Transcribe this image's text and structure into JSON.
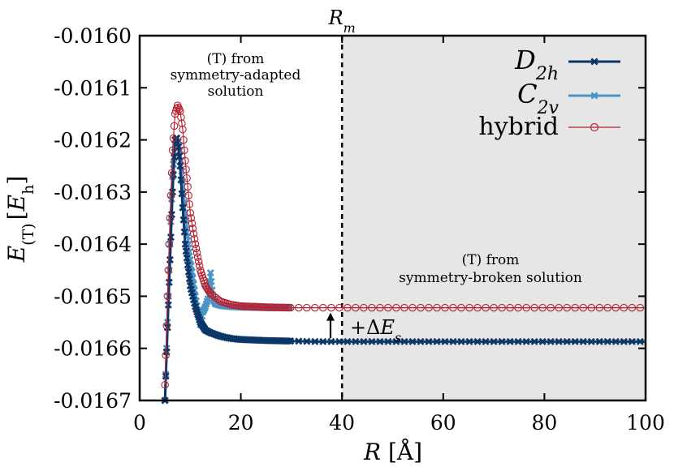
{
  "chart_data": {
    "type": "line",
    "xlabel": "R [Å]",
    "ylabel": "E(T) [Eh]",
    "xlim": [
      0,
      100
    ],
    "ylim": [
      -0.0167,
      -0.016
    ],
    "x_ticks": [
      "0",
      "20",
      "40",
      "60",
      "80",
      "100"
    ],
    "y_ticks": [
      "-0.0160",
      "-0.0161",
      "-0.0162",
      "-0.0163",
      "-0.0164",
      "-0.0165",
      "-0.0166",
      "-0.0167"
    ],
    "vertical_line": {
      "x": 40,
      "label": "R_m",
      "style": "dashed"
    },
    "shaded_region": {
      "x_start": 40,
      "x_end": 100,
      "color": "#e6e6e6"
    },
    "annotations": {
      "left_line1": "(T) from",
      "left_line2": "symmetry-adapted",
      "left_line3": "solution",
      "right_line1": "(T) from",
      "right_line2": "symmetry-broken solution",
      "arrow_label": "+ΔE_s"
    },
    "legend": {
      "position": "top-right",
      "entries": [
        "D_2h",
        "C_2v",
        "hybrid"
      ]
    },
    "series": [
      {
        "name": "D_2h",
        "color": "#0c3667",
        "marker": "x",
        "x": [
          5,
          5.5,
          6,
          6.5,
          7,
          7.5,
          8,
          8.5,
          9,
          10,
          11,
          12,
          13,
          14,
          16,
          18,
          20,
          25,
          30,
          35,
          40,
          45,
          50,
          60,
          70,
          80,
          90,
          100
        ],
        "values": [
          -0.0167,
          -0.01656,
          -0.01643,
          -0.0163,
          -0.0162,
          -0.016195,
          -0.01625,
          -0.01633,
          -0.0164,
          -0.01648,
          -0.01652,
          -0.01655,
          -0.016565,
          -0.01657,
          -0.016577,
          -0.016581,
          -0.016583,
          -0.016585,
          -0.016586,
          -0.016587,
          -0.016587,
          -0.016587,
          -0.016587,
          -0.016587,
          -0.016587,
          -0.016587,
          -0.016587,
          -0.016587
        ]
      },
      {
        "name": "C_2v",
        "color": "#4b94c6",
        "marker": "x",
        "x": [
          5,
          5.5,
          6,
          6.5,
          7,
          7.5,
          8,
          8.5,
          9,
          10,
          11,
          12,
          12.5,
          13,
          13.5,
          14,
          14.5,
          15,
          16,
          18,
          20,
          25,
          30
        ],
        "values": [
          -0.0167,
          -0.01655,
          -0.0164,
          -0.01627,
          -0.0162,
          -0.016195,
          -0.01622,
          -0.01628,
          -0.01634,
          -0.01643,
          -0.0165,
          -0.016555,
          -0.01653,
          -0.01652,
          -0.016505,
          -0.016455,
          -0.016505,
          -0.016515,
          -0.016518,
          -0.01652,
          -0.016521,
          -0.016522,
          -0.016522
        ]
      },
      {
        "name": "hybrid",
        "color": "#b42433",
        "marker": "circle",
        "x": [
          5,
          5.5,
          6,
          6.5,
          7,
          7.5,
          8,
          8.5,
          9,
          9.5,
          10,
          11,
          12,
          13,
          14,
          16,
          18,
          20,
          25,
          30,
          35,
          40,
          45,
          50,
          60,
          70,
          80,
          90,
          100
        ],
        "values": [
          -0.01667,
          -0.0165,
          -0.01635,
          -0.01622,
          -0.01615,
          -0.016134,
          -0.016145,
          -0.01618,
          -0.01624,
          -0.01629,
          -0.01634,
          -0.0164,
          -0.01645,
          -0.01648,
          -0.016495,
          -0.01651,
          -0.016516,
          -0.016519,
          -0.016521,
          -0.016522,
          -0.016522,
          -0.016522,
          -0.016522,
          -0.016522,
          -0.016522,
          -0.016522,
          -0.016522,
          -0.016522,
          -0.016522
        ]
      }
    ]
  }
}
